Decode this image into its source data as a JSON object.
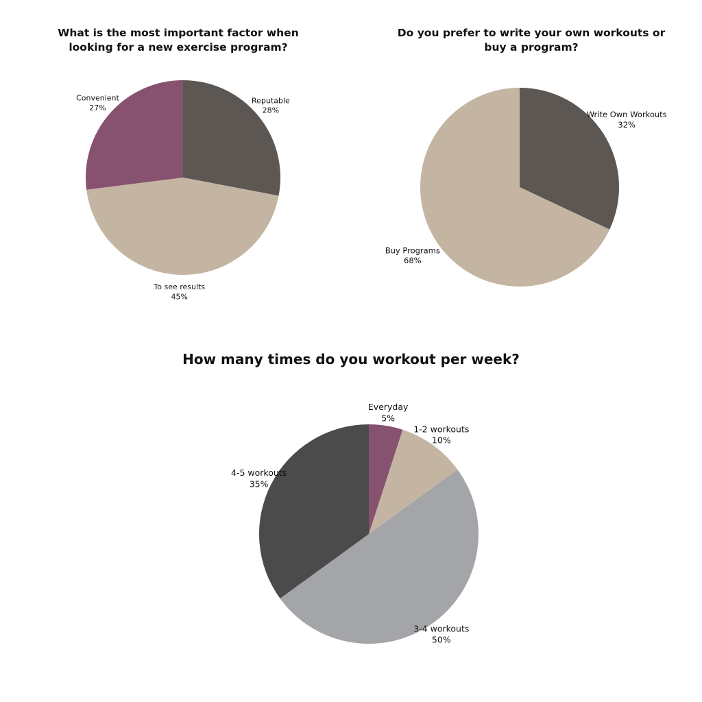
{
  "chart_data": [
    {
      "type": "pie",
      "title": "What is the most important factor when looking for a new exercise program?",
      "unit": "%",
      "slices": [
        {
          "label": "Reputable",
          "value": 28,
          "color": "#5d5753"
        },
        {
          "label": "To see results",
          "value": 45,
          "color": "#c4b5a2"
        },
        {
          "label": "Convenient",
          "value": 27,
          "color": "#87526f"
        }
      ]
    },
    {
      "type": "pie",
      "title": "Do you prefer to write your own workouts or buy a program?",
      "unit": "%",
      "slices": [
        {
          "label": "Write Own Workouts",
          "value": 32,
          "color": "#5d5753"
        },
        {
          "label": "Buy Programs",
          "value": 68,
          "color": "#c4b5a2"
        }
      ]
    },
    {
      "type": "pie",
      "title": "How many times do you workout per week?",
      "unit": "%",
      "slices": [
        {
          "label": "Everyday",
          "value": 5,
          "color": "#87526f"
        },
        {
          "label": "1-2 workouts",
          "value": 10,
          "color": "#c4b5a2"
        },
        {
          "label": "3-4 workouts",
          "value": 50,
          "color": "#a4a5a8"
        },
        {
          "label": "4-5 workouts",
          "value": 35,
          "color": "#4b4b4b"
        }
      ]
    }
  ]
}
